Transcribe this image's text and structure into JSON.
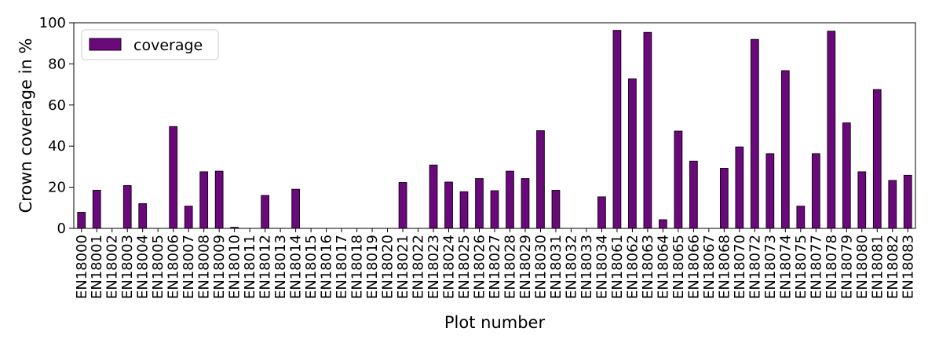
{
  "chart_data": {
    "type": "bar",
    "title": "",
    "xlabel": "Plot number",
    "ylabel": "Crown coverage in %",
    "ylim": [
      0,
      100
    ],
    "yticks": [
      0,
      20,
      40,
      60,
      80,
      100
    ],
    "legend": "top-left",
    "grid": false,
    "bar_color": "#6a0a7a",
    "edge_color": "#1a0020",
    "categories": [
      "EN18000",
      "EN18001",
      "EN18002",
      "EN18003",
      "EN18004",
      "EN18005",
      "EN18006",
      "EN18007",
      "EN18008",
      "EN18009",
      "EN18010",
      "EN18011",
      "EN18012",
      "EN18013",
      "EN18014",
      "EN18015",
      "EN18016",
      "EN18017",
      "EN18018",
      "EN18019",
      "EN18020",
      "EN18021",
      "EN18022",
      "EN18023",
      "EN18024",
      "EN18025",
      "EN18026",
      "EN18027",
      "EN18028",
      "EN18029",
      "EN18030",
      "EN18031",
      "EN18032",
      "EN18033",
      "EN18034",
      "EN18061",
      "EN18062",
      "EN18063",
      "EN18064",
      "EN18065",
      "EN18066",
      "EN18067",
      "EN18068",
      "EN18070",
      "EN18072",
      "EN18073",
      "EN18074",
      "EN18075",
      "EN18077",
      "EN18078",
      "EN18079",
      "EN18080",
      "EN18081",
      "EN18082",
      "EN18083"
    ],
    "series": [
      {
        "name": "coverage",
        "values": [
          7.8,
          18.5,
          0,
          20.8,
          12,
          0,
          49.5,
          10.8,
          27.5,
          27.8,
          0.5,
          0,
          16,
          0,
          19,
          0,
          0,
          0,
          0,
          0,
          0,
          22.3,
          0,
          30.8,
          22.5,
          17.8,
          24.2,
          18.3,
          27.8,
          24.2,
          47.5,
          18.5,
          0,
          0,
          15.3,
          96.3,
          72.7,
          95.3,
          4.2,
          47.3,
          32.7,
          0,
          29.2,
          39.6,
          91.9,
          36.3,
          76.7,
          10.8,
          36.3,
          95.9,
          51.3,
          27.5,
          67.5,
          23.3,
          25.8
        ]
      }
    ]
  }
}
